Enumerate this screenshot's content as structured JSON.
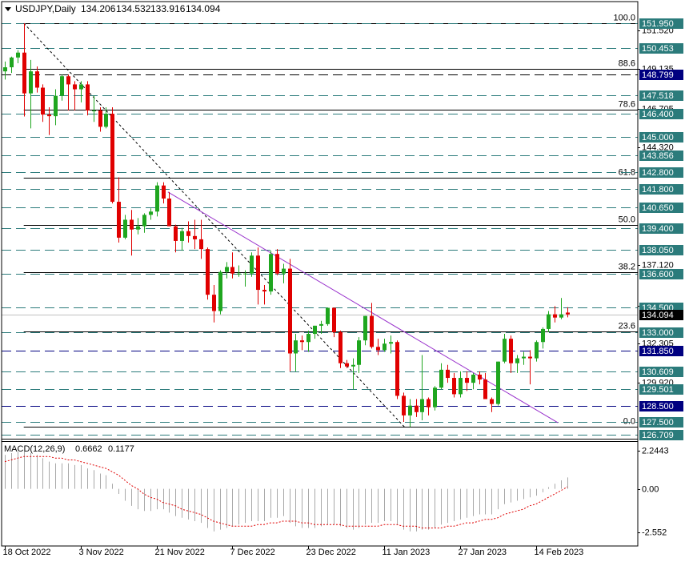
{
  "chart_data": {
    "type": "candlestick",
    "symbol": "USDJPY,Daily",
    "categories": [
      "18 Oct 2022",
      null,
      null,
      null,
      null,
      null,
      null,
      null,
      null,
      null,
      null,
      null,
      "3 Nov 2022",
      null,
      null,
      null,
      null,
      null,
      null,
      null,
      null,
      null,
      null,
      null,
      "21 Nov 2022",
      null,
      null,
      null,
      null,
      null,
      null,
      null,
      null,
      null,
      null,
      null,
      "7 Dec 2022",
      null,
      null,
      null,
      null,
      null,
      null,
      null,
      null,
      null,
      null,
      null,
      "23 Dec 2022",
      null,
      null,
      null,
      null,
      null,
      null,
      null,
      null,
      null,
      null,
      null,
      "11 Jan 2023",
      null,
      null,
      null,
      null,
      null,
      null,
      null,
      null,
      null,
      null,
      null,
      "27 Jan 2023",
      null,
      null,
      null,
      null,
      null,
      null,
      null,
      null,
      null,
      null,
      null,
      "14 Feb 2023",
      null,
      null,
      null,
      null,
      null
    ],
    "open": [
      149.0,
      149.25,
      149.85,
      150.15,
      147.65,
      149.0,
      148.0,
      146.35,
      146.25,
      147.5,
      148.7,
      148.2,
      147.9,
      148.2,
      146.6,
      146.6,
      145.6,
      146.4,
      141.0,
      138.8,
      139.9,
      139.3,
      139.5,
      140.2,
      140.4,
      142.0,
      141.2,
      139.5,
      138.6,
      139.2,
      138.9,
      138.7,
      138.1,
      135.3,
      134.3,
      136.7,
      137.0,
      136.6,
      136.6,
      136.6,
      137.7,
      135.6,
      135.5,
      137.8,
      136.6,
      136.9,
      131.7,
      132.5,
      132.4,
      132.9,
      133.4,
      133.5,
      134.5,
      133.0,
      131.1,
      130.9,
      131.0,
      132.5,
      134.0,
      132.1,
      131.9,
      132.3,
      132.4,
      129.1,
      127.9,
      128.5,
      128.1,
      128.9,
      128.4,
      129.6,
      130.7,
      130.2,
      129.2,
      130.2,
      129.9,
      130.4,
      130.1,
      128.9,
      128.6,
      131.2,
      132.6,
      131.1,
      131.4,
      131.5,
      131.4,
      132.4,
      133.2,
      134.1,
      133.9,
      134.206
    ],
    "high": [
      149.6,
      149.9,
      150.3,
      151.95,
      149.7,
      149.3,
      148.2,
      146.8,
      147.9,
      148.8,
      148.8,
      148.4,
      148.4,
      148.4,
      147.5,
      146.8,
      146.8,
      146.8,
      142.5,
      140.2,
      140.5,
      140.0,
      140.3,
      140.6,
      142.2,
      142.2,
      141.6,
      139.6,
      139.4,
      139.8,
      139.9,
      139.9,
      138.2,
      135.9,
      136.8,
      137.3,
      137.9,
      137.1,
      136.8,
      137.9,
      138.2,
      135.9,
      138.0,
      138.1,
      137.2,
      137.5,
      132.9,
      132.8,
      133.1,
      133.4,
      133.7,
      134.5,
      134.5,
      133.1,
      131.3,
      131.4,
      132.7,
      134.0,
      134.8,
      132.6,
      132.6,
      132.8,
      132.5,
      129.3,
      128.9,
      128.9,
      131.6,
      129.0,
      129.7,
      131.1,
      131.0,
      130.5,
      130.6,
      130.6,
      130.5,
      130.6,
      130.5,
      129.0,
      131.2,
      132.9,
      132.8,
      131.6,
      131.8,
      131.9,
      132.5,
      133.3,
      134.3,
      134.6,
      135.1,
      134.532
    ],
    "low": [
      148.5,
      148.9,
      149.5,
      146.23,
      145.5,
      147.7,
      145.9,
      145.1,
      145.7,
      147.2,
      146.6,
      146.6,
      147.1,
      146.3,
      145.9,
      145.3,
      145.5,
      140.9,
      138.5,
      138.7,
      137.7,
      139.0,
      139.1,
      139.9,
      140.1,
      140.9,
      139.5,
      137.9,
      138.0,
      138.5,
      138.1,
      137.5,
      135.0,
      133.6,
      134.1,
      136.3,
      136.3,
      136.4,
      135.8,
      136.4,
      134.7,
      134.7,
      135.3,
      136.5,
      136.0,
      130.6,
      130.6,
      131.9,
      131.8,
      132.6,
      132.9,
      133.4,
      132.7,
      130.8,
      130.8,
      129.5,
      130.5,
      132.2,
      132.0,
      131.6,
      131.8,
      131.7,
      128.9,
      127.5,
      127.2,
      127.8,
      127.6,
      127.9,
      128.2,
      129.5,
      129.9,
      129.0,
      129.0,
      129.4,
      129.5,
      129.8,
      128.9,
      128.1,
      128.5,
      131.1,
      130.5,
      130.5,
      131.0,
      129.8,
      131.2,
      132.0,
      133.0,
      133.6,
      133.8,
      133.916
    ],
    "close": [
      149.25,
      149.85,
      150.15,
      147.65,
      149.0,
      148.0,
      146.35,
      146.25,
      147.5,
      148.7,
      148.2,
      147.9,
      148.2,
      146.6,
      146.6,
      145.6,
      146.4,
      141.0,
      138.8,
      139.9,
      139.3,
      139.5,
      140.2,
      140.4,
      142.0,
      141.2,
      139.5,
      138.6,
      139.2,
      138.9,
      138.7,
      138.1,
      135.3,
      134.3,
      136.7,
      137.0,
      136.6,
      136.6,
      136.6,
      137.7,
      135.6,
      135.5,
      137.8,
      136.6,
      136.9,
      131.7,
      132.5,
      132.4,
      132.9,
      133.4,
      133.5,
      134.5,
      133.0,
      131.1,
      130.9,
      131.0,
      132.5,
      134.0,
      132.1,
      131.9,
      132.3,
      132.4,
      129.1,
      127.9,
      128.5,
      128.1,
      128.9,
      128.4,
      129.6,
      130.7,
      130.2,
      129.2,
      130.2,
      129.9,
      130.4,
      130.1,
      128.9,
      128.6,
      131.2,
      132.6,
      131.1,
      131.4,
      131.5,
      131.4,
      132.4,
      133.2,
      134.1,
      133.9,
      134.1,
      134.094
    ],
    "up_color": "#1fa61f",
    "down_color": "#e00000",
    "ylim": [
      126.47,
      153.18
    ],
    "yticks": [
      {
        "value": 151.52,
        "label": "151.520"
      },
      149.135,
      146.705,
      {
        "value": 144.32,
        "label": "144.320"
      },
      {
        "value": 137.12,
        "label": "137.120"
      },
      {
        "value": 134.6,
        "label": "134.600"
      },
      132.305,
      {
        "value": 129.92,
        "label": "129.920"
      }
    ],
    "levels": [
      {
        "value": 151.95,
        "label": "151.950",
        "color": "#2b7b7b",
        "line_color": "#2b7b7b",
        "dash": true
      },
      {
        "value": 150.453,
        "label": "150.453",
        "color": "#2b7b7b",
        "line_color": "#2b7b7b",
        "dash": true
      },
      {
        "value": 148.799,
        "label": "148.799",
        "color": "#000080",
        "line_color": "#000000",
        "dash": true
      },
      {
        "value": 147.518,
        "label": "147.518",
        "color": "#2b7b7b",
        "line_color": "#2b7b7b",
        "dash": true
      },
      {
        "value": 146.4,
        "label": "146.400",
        "color": "#2b7b7b",
        "line_color": "#2b7b7b",
        "dash": true
      },
      {
        "value": 145.0,
        "label": "145.000",
        "color": "#2b7b7b",
        "line_color": "#2b7b7b",
        "dash": true
      },
      {
        "value": 143.856,
        "label": "143.856",
        "color": "#2b7b7b",
        "line_color": "#2b7b7b",
        "dash": true
      },
      {
        "value": 142.8,
        "label": "142.800",
        "color": "#2b7b7b",
        "line_color": "#2b7b7b",
        "dash": true
      },
      {
        "value": 141.8,
        "label": "141.800",
        "color": "#2b7b7b",
        "line_color": "#2b7b7b",
        "dash": true
      },
      {
        "value": 140.65,
        "label": "140.650",
        "color": "#2b7b7b",
        "line_color": "#2b7b7b",
        "dash": true
      },
      {
        "value": 139.4,
        "label": "139.400",
        "color": "#2b7b7b",
        "line_color": "#2b7b7b",
        "dash": true
      },
      {
        "value": 138.05,
        "label": "138.050",
        "color": "#2b7b7b",
        "line_color": "#2b7b7b",
        "dash": true
      },
      {
        "value": 136.6,
        "label": "136.600",
        "color": "#2b7b7b",
        "line_color": "#2b7b7b",
        "dash": true
      },
      {
        "value": 134.5,
        "label": "134.500",
        "color": "#2b7b7b",
        "line_color": "#2b7b7b",
        "dash": true
      },
      {
        "value": 134.094,
        "label": "134.094",
        "color": "#000000",
        "line_color": "#c0c0c0",
        "dash": false
      },
      {
        "value": 133.0,
        "label": "133.000",
        "color": "#2b7b7b",
        "line_color": "#2b7b7b",
        "dash": true
      },
      {
        "value": 131.85,
        "label": "131.850",
        "color": "#000080",
        "line_color": "#000080",
        "dash": true
      },
      {
        "value": 130.609,
        "label": "130.609",
        "color": "#2b7b7b",
        "line_color": "#2b7b7b",
        "dash": true
      },
      {
        "value": 129.501,
        "label": "129.501",
        "color": "#2b7b7b",
        "line_color": "#2b7b7b",
        "dash": true
      },
      {
        "value": 128.5,
        "label": "128.500",
        "color": "#000080",
        "line_color": "#000080",
        "dash": true
      },
      {
        "value": 127.5,
        "label": "127.500",
        "color": "#2b7b7b",
        "line_color": "#2b7b7b",
        "dash": true
      },
      {
        "value": 126.709,
        "label": "126.709",
        "color": "#2b7b7b",
        "line_color": "#2b7b7b",
        "dash": true
      }
    ],
    "fibonacci": {
      "color": "#000000",
      "start_index": 3,
      "levels": [
        {
          "label": "100.0",
          "value": 151.95
        },
        {
          "label": "88.6",
          "value": 149.13
        },
        {
          "label": "78.6",
          "value": 146.66
        },
        {
          "label": "61.8",
          "value": 142.5
        },
        {
          "label": "50.0",
          "value": 139.585
        },
        {
          "label": "38.2",
          "value": 136.67
        },
        {
          "label": "23.6",
          "value": 133.06
        },
        {
          "label": "0.0",
          "value": 127.22
        }
      ]
    },
    "trendlines": [
      {
        "from": {
          "index": 3,
          "value": 151.95
        },
        "to": {
          "index": 63.2,
          "value": 127.2
        },
        "color": "#000000",
        "dash": true
      },
      {
        "from": {
          "index": 25.8,
          "value": 141.6
        },
        "to": {
          "index": 87.5,
          "value": 127.45
        },
        "color": "#9932cc",
        "dash": false
      }
    ],
    "macd": {
      "name": "MACD(12,26,9)",
      "histogram": [
        2.0,
        2.1,
        2.2,
        2.2,
        2.1,
        2.0,
        1.8,
        1.6,
        1.5,
        1.5,
        1.5,
        1.4,
        1.4,
        1.2,
        1.1,
        0.9,
        0.8,
        0.3,
        -0.3,
        -0.7,
        -1.0,
        -1.2,
        -1.3,
        -1.3,
        -1.2,
        -1.2,
        -1.4,
        -1.6,
        -1.7,
        -1.8,
        -1.9,
        -2.0,
        -2.3,
        -2.5,
        -2.4,
        -2.3,
        -2.2,
        -2.1,
        -2.0,
        -1.9,
        -1.9,
        -1.9,
        -1.7,
        -1.7,
        -1.6,
        -2.0,
        -2.2,
        -2.3,
        -2.3,
        -2.3,
        -2.2,
        -2.1,
        -2.1,
        -2.2,
        -2.3,
        -2.4,
        -2.3,
        -2.1,
        -2.0,
        -2.0,
        -1.9,
        -1.9,
        -2.1,
        -2.4,
        -2.5,
        -2.5,
        -2.4,
        -2.4,
        -2.3,
        -2.1,
        -2.0,
        -1.9,
        -1.8,
        -1.7,
        -1.6,
        -1.5,
        -1.5,
        -1.5,
        -1.2,
        -0.9,
        -0.8,
        -0.7,
        -0.6,
        -0.5,
        -0.4,
        -0.2,
        0.1,
        0.3,
        0.5,
        0.6662
      ],
      "signal": [
        1.6,
        1.7,
        1.8,
        1.9,
        1.9,
        1.9,
        1.9,
        1.9,
        1.8,
        1.8,
        1.7,
        1.7,
        1.6,
        1.5,
        1.4,
        1.3,
        1.2,
        1.0,
        0.8,
        0.5,
        0.2,
        0.0,
        -0.3,
        -0.5,
        -0.6,
        -0.8,
        -0.9,
        -1.0,
        -1.2,
        -1.3,
        -1.4,
        -1.5,
        -1.7,
        -1.9,
        -2.0,
        -2.1,
        -2.2,
        -2.2,
        -2.2,
        -2.2,
        -2.1,
        -2.1,
        -2.0,
        -2.0,
        -1.9,
        -1.9,
        -1.9,
        -2.0,
        -2.0,
        -2.1,
        -2.1,
        -2.1,
        -2.1,
        -2.1,
        -2.2,
        -2.2,
        -2.2,
        -2.2,
        -2.2,
        -2.2,
        -2.1,
        -2.1,
        -2.1,
        -2.2,
        -2.2,
        -2.2,
        -2.3,
        -2.3,
        -2.3,
        -2.3,
        -2.2,
        -2.2,
        -2.1,
        -2.0,
        -2.0,
        -1.9,
        -1.8,
        -1.8,
        -1.7,
        -1.5,
        -1.4,
        -1.3,
        -1.2,
        -1.0,
        -0.9,
        -0.7,
        -0.5,
        -0.3,
        -0.1,
        0.1177
      ],
      "histogram_color": "#a8a8a8",
      "signal_color": "#e00000",
      "ylim": [
        -3.36,
        2.71
      ],
      "yticks": [
        2.2443,
        {
          "value": 0,
          "label": "0.00"
        },
        -2.552
      ]
    }
  }
}
